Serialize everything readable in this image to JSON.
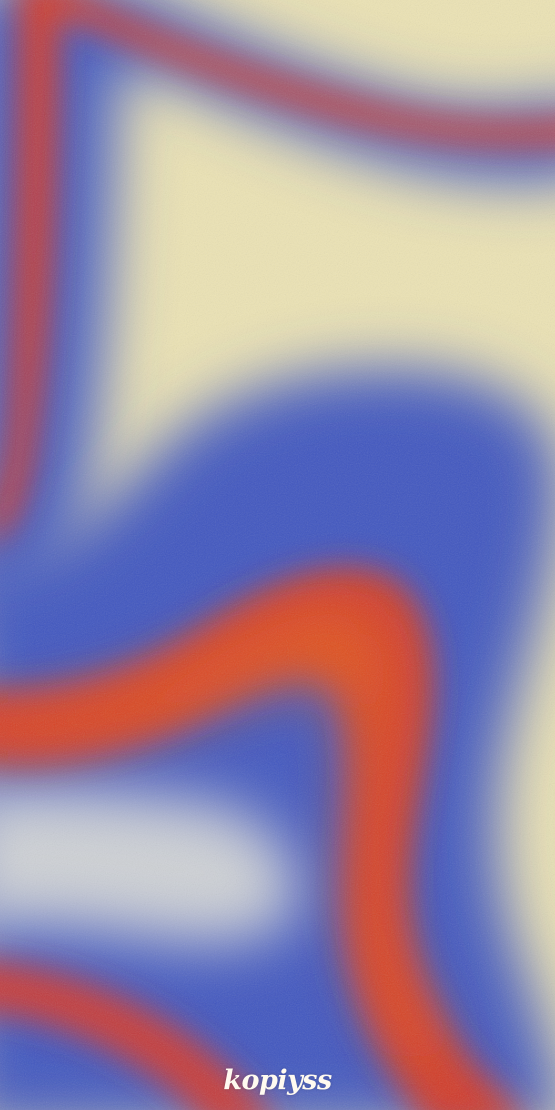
{
  "artwork": {
    "description_tag": "abstract-gradient-wallpaper",
    "colors": {
      "background": "#ece3b4",
      "blue": "#3f57c0",
      "red": "#d23a2a",
      "orange": "#e4571f",
      "pale_blue": "#c9cfd8"
    }
  },
  "watermark": {
    "text": "kopiyss"
  }
}
